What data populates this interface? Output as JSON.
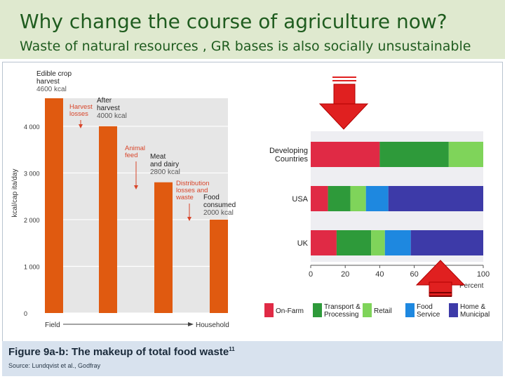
{
  "slide": {
    "title": "Why change the course of agriculture now?",
    "subtitle": "Waste of natural resources , GR bases is also socially unsustainable"
  },
  "figure": {
    "caption": "Figure 9a-b: The makeup of total food waste",
    "caption_sup": "11",
    "source": "Source: Lundqvist et al., Godfray"
  },
  "colors": {
    "header_bg": "#dfe9cf",
    "title_text": "#1f5c1f",
    "bar_orange": "#e05a10",
    "chart_bg": "#e6e6e6",
    "annot_red": "#d8452a",
    "on_farm": "#e02a45",
    "transport": "#2e9a3a",
    "retail": "#7fd45a",
    "food_service": "#1e88e0",
    "home": "#3d3aa8",
    "arrow_red": "#e02020"
  },
  "chart_data": [
    {
      "type": "bar",
      "categories": [
        "Edible crop harvest",
        "After harvest",
        "Meat and dairy",
        "Food consumed"
      ],
      "values": [
        4600,
        4000,
        2800,
        2000
      ],
      "ylabel": "kcal/cap ita/day",
      "ylim": [
        0,
        4600
      ],
      "yticks": [
        0,
        1000,
        2000,
        3000,
        4000
      ],
      "ytick_labels": [
        "0",
        "1 000",
        "2 000",
        "3 000",
        "4 000"
      ],
      "x_start_label": "Field",
      "x_end_label": "Household",
      "bar_labels": [
        {
          "lines": [
            "Edible crop",
            "harvest"
          ],
          "value": "4600 kcal"
        },
        {
          "lines": [
            "After",
            "harvest"
          ],
          "value": "4000 kcal"
        },
        {
          "lines": [
            "Meat",
            "and dairy"
          ],
          "value": "2800 kcal"
        },
        {
          "lines": [
            "Food",
            "consumed"
          ],
          "value": "2000 kcal"
        }
      ],
      "losses": [
        {
          "lines": [
            "Harvest",
            "losses"
          ]
        },
        {
          "lines": [
            "Animal",
            "feed"
          ]
        },
        {
          "lines": [
            "Distribution",
            "losses and",
            "waste"
          ]
        }
      ],
      "grid": true
    },
    {
      "type": "bar",
      "orientation": "horizontal",
      "stacked": true,
      "categories": [
        "Developing Countries",
        "USA",
        "UK"
      ],
      "category_lines": [
        [
          "Developing",
          "Countries"
        ],
        [
          "USA"
        ],
        [
          "UK"
        ]
      ],
      "series": [
        {
          "name": "On-Farm",
          "values": [
            40,
            10,
            15
          ]
        },
        {
          "name": "Transport & Processing",
          "values": [
            40,
            13,
            20
          ]
        },
        {
          "name": "Retail",
          "values": [
            20,
            9,
            8
          ]
        },
        {
          "name": "Food Service",
          "values": [
            0,
            13,
            15
          ]
        },
        {
          "name": "Home & Municipal",
          "values": [
            0,
            55,
            42
          ]
        }
      ],
      "legend_lines": [
        [
          "On-Farm"
        ],
        [
          "Transport &",
          "Processing"
        ],
        [
          "Retail"
        ],
        [
          "Food",
          "Service"
        ],
        [
          "Home &",
          "Municipal"
        ]
      ],
      "xlim": [
        0,
        100
      ],
      "xticks": [
        0,
        20,
        40,
        60,
        100
      ],
      "xlabel": "Percent",
      "legend_position": "bottom",
      "grid": false
    }
  ]
}
